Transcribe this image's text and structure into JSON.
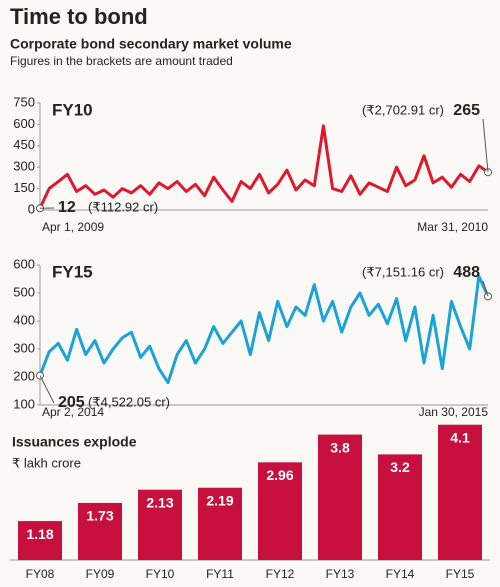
{
  "header": {
    "title": "Time to bond",
    "subtitle": "Corporate bond secondary market volume",
    "note": "Figures in the brackets are amount traded"
  },
  "chart_data": [
    {
      "type": "line",
      "title": "FY10",
      "color": "#e0182d",
      "categories": [
        "Apr 1, 2009",
        null,
        null,
        null,
        null,
        null,
        null,
        null,
        null,
        null,
        null,
        null,
        null,
        null,
        null,
        null,
        null,
        null,
        null,
        null,
        null,
        null,
        null,
        null,
        null,
        null,
        null,
        null,
        null,
        null,
        null,
        null,
        null,
        null,
        null,
        null,
        null,
        null,
        null,
        null,
        null,
        null,
        null,
        null,
        null,
        null,
        null,
        null,
        null,
        "Mar 31, 2010"
      ],
      "values": [
        12,
        150,
        200,
        250,
        130,
        170,
        110,
        140,
        90,
        150,
        120,
        170,
        110,
        190,
        150,
        200,
        130,
        180,
        100,
        230,
        140,
        60,
        200,
        150,
        250,
        120,
        180,
        280,
        140,
        210,
        170,
        590,
        150,
        130,
        240,
        110,
        190,
        160,
        130,
        300,
        170,
        210,
        380,
        190,
        230,
        160,
        250,
        200,
        310,
        265
      ],
      "annotations": [
        "(₹112.92 cr)",
        "(₹2,702.91 cr)"
      ],
      "ylim": [
        0,
        750
      ],
      "yticks": [
        0,
        150,
        300,
        450,
        600,
        750
      ]
    },
    {
      "type": "line",
      "title": "FY15",
      "color": "#1ba3d6",
      "categories": [
        "Apr 2, 2014",
        null,
        null,
        null,
        null,
        null,
        null,
        null,
        null,
        null,
        null,
        null,
        null,
        null,
        null,
        null,
        null,
        null,
        null,
        null,
        null,
        null,
        null,
        null,
        null,
        null,
        null,
        null,
        null,
        null,
        null,
        null,
        null,
        null,
        null,
        null,
        null,
        null,
        null,
        null,
        null,
        null,
        null,
        null,
        null,
        null,
        null,
        null,
        null,
        "Jan 30, 2015"
      ],
      "values": [
        205,
        290,
        320,
        260,
        370,
        280,
        330,
        250,
        300,
        340,
        360,
        270,
        310,
        230,
        180,
        280,
        330,
        250,
        300,
        380,
        320,
        360,
        400,
        280,
        430,
        330,
        470,
        380,
        450,
        420,
        530,
        400,
        470,
        360,
        450,
        500,
        420,
        460,
        390,
        480,
        330,
        450,
        250,
        420,
        230,
        470,
        380,
        300,
        560,
        488
      ],
      "annotations": [
        "(₹4,522.05 cr)",
        "(₹7,151.16 cr)"
      ],
      "ylim": [
        100,
        600
      ],
      "yticks": [
        100,
        200,
        300,
        400,
        500,
        600
      ]
    },
    {
      "type": "bar",
      "title": "Issuances explode",
      "subtitle": "₹ lakh crore",
      "color": "#c8103e",
      "categories": [
        "FY08",
        "FY09",
        "FY10",
        "FY11",
        "FY12",
        "FY13",
        "FY14",
        "FY15"
      ],
      "values": [
        1.18,
        1.73,
        2.13,
        2.19,
        2.96,
        3.8,
        3.2,
        4.1
      ]
    }
  ]
}
